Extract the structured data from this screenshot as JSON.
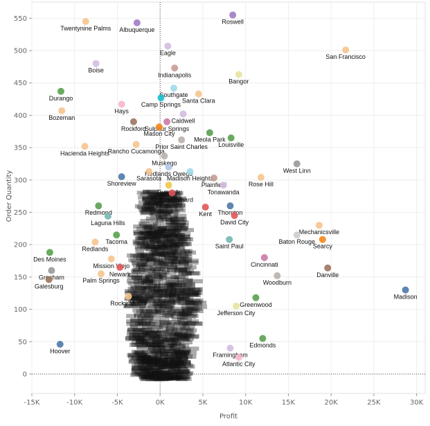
{
  "chart_data": {
    "type": "scatter",
    "xlabel": "Profit",
    "ylabel": "Order Quantity",
    "xlim": [
      -15000,
      31000
    ],
    "ylim": [
      -30,
      575
    ],
    "x_ticks": [
      {
        "value": -15000,
        "label": "-15K"
      },
      {
        "value": -10000,
        "label": "-10K"
      },
      {
        "value": -5000,
        "label": "-5K"
      },
      {
        "value": 0,
        "label": "0K"
      },
      {
        "value": 5000,
        "label": "5K"
      },
      {
        "value": 10000,
        "label": "10K"
      },
      {
        "value": 15000,
        "label": "15K"
      },
      {
        "value": 20000,
        "label": "20K"
      },
      {
        "value": 25000,
        "label": "25K"
      },
      {
        "value": 30000,
        "label": "30K"
      }
    ],
    "y_ticks": [
      0,
      50,
      100,
      150,
      200,
      250,
      300,
      350,
      400,
      450,
      500,
      550
    ],
    "grid": true,
    "reference_lines": {
      "x": 0,
      "y": 0
    },
    "points": [
      {
        "label": "Roswell",
        "x": 8500,
        "y": 555,
        "color": "#a07cc5"
      },
      {
        "label": "Twentynine Palms",
        "x": -8700,
        "y": 545,
        "color": "#f6c48f"
      },
      {
        "label": "Albuquerque",
        "x": -2700,
        "y": 543,
        "color": "#a07cc5"
      },
      {
        "label": "Eagle",
        "x": 900,
        "y": 507,
        "color": "#d3bce0"
      },
      {
        "label": "San Francisco",
        "x": 21700,
        "y": 501,
        "color": "#f6c48f"
      },
      {
        "label": "Boise",
        "x": -7500,
        "y": 480,
        "color": "#d3bce0"
      },
      {
        "label": "Indianapolis",
        "x": 1700,
        "y": 473,
        "color": "#c49c94"
      },
      {
        "label": "Bangor",
        "x": 9200,
        "y": 463,
        "color": "#e6e49e"
      },
      {
        "label": "Southgate",
        "x": 1600,
        "y": 442,
        "color": "#9edae5"
      },
      {
        "label": "Durango",
        "x": -11600,
        "y": 437,
        "color": "#59a14f"
      },
      {
        "label": "Santa Clara",
        "x": 4500,
        "y": 433,
        "color": "#f6c48f"
      },
      {
        "label": "Camp Springs",
        "x": 100,
        "y": 427,
        "color": "#17becf"
      },
      {
        "label": "Hays",
        "x": -4500,
        "y": 417,
        "color": "#f8b6c8"
      },
      {
        "label": "Bozeman",
        "x": -11500,
        "y": 407,
        "color": "#f6c48f"
      },
      {
        "label": "Caldwell",
        "x": 2700,
        "y": 402,
        "color": "#d3bce0"
      },
      {
        "label": "Rockford",
        "x": -3100,
        "y": 390,
        "color": "#9c755f"
      },
      {
        "label": "Sulphur Springs",
        "x": 800,
        "y": 390,
        "color": "#cc79a7"
      },
      {
        "label": "Mason City",
        "x": -100,
        "y": 382,
        "color": "#f58518"
      },
      {
        "label": "Meola Park",
        "x": 5800,
        "y": 373,
        "color": "#59a14f"
      },
      {
        "label": "Louisville",
        "x": 8300,
        "y": 365,
        "color": "#59a14f"
      },
      {
        "label": "Prior Saint Charles",
        "x": 2500,
        "y": 362,
        "color": "#bab0ac"
      },
      {
        "label": "Hacienda Heights",
        "x": -8800,
        "y": 352,
        "color": "#f6c48f"
      },
      {
        "label": "Rancho Cucamonga",
        "x": -2800,
        "y": 355,
        "color": "#f6c48f"
      },
      {
        "label": "Muskego",
        "x": 500,
        "y": 337,
        "color": "#bab0ac"
      },
      {
        "label": "West Linn",
        "x": 16000,
        "y": 325,
        "color": "#999999"
      },
      {
        "label": "Redlands Owego",
        "x": 1000,
        "y": 320,
        "color": "#aec7e8"
      },
      {
        "label": "Sarasota",
        "x": -1300,
        "y": 313,
        "color": "#f6c48f"
      },
      {
        "label": "Madison Heights",
        "x": 3500,
        "y": 313,
        "color": "#9edae5"
      },
      {
        "label": "Shoreview",
        "x": -4500,
        "y": 305,
        "color": "#4e79a7"
      },
      {
        "label": "Rose Hill",
        "x": 11800,
        "y": 304,
        "color": "#f6c48f"
      },
      {
        "label": "Plainfield",
        "x": 6300,
        "y": 303,
        "color": "#c49c94"
      },
      {
        "label": "Tonawanda",
        "x": 7400,
        "y": 292,
        "color": "#d3bce0"
      },
      {
        "label": "Dundalk",
        "x": 1000,
        "y": 292,
        "color": "#edc948"
      },
      {
        "label": "Auburn Oxnard",
        "x": 1400,
        "y": 280,
        "color": "#e15759"
      },
      {
        "label": "Redmond",
        "x": -7200,
        "y": 260,
        "color": "#59a14f"
      },
      {
        "label": "Laguna Hills",
        "x": -6100,
        "y": 244,
        "color": "#76b7b2"
      },
      {
        "label": "Kent",
        "x": 5300,
        "y": 258,
        "color": "#e15759"
      },
      {
        "label": "Thornton",
        "x": 8200,
        "y": 260,
        "color": "#4e79a7"
      },
      {
        "label": "David City",
        "x": 8700,
        "y": 245,
        "color": "#e15759"
      },
      {
        "label": "Mechanicsville",
        "x": 18600,
        "y": 230,
        "color": "#f6c48f"
      },
      {
        "label": "Tacoma",
        "x": -5100,
        "y": 215,
        "color": "#59a14f"
      },
      {
        "label": "Baton Rouge",
        "x": 16000,
        "y": 215,
        "color": "#cccccc"
      },
      {
        "label": "Searcy",
        "x": 19000,
        "y": 208,
        "color": "#f58518"
      },
      {
        "label": "Saint Paul",
        "x": 8100,
        "y": 208,
        "color": "#76b7b2"
      },
      {
        "label": "Redlands",
        "x": -7600,
        "y": 204,
        "color": "#f6c48f"
      },
      {
        "label": "Des Moines",
        "x": -12900,
        "y": 188,
        "color": "#59a14f"
      },
      {
        "label": "Mission Viejo",
        "x": -5700,
        "y": 178,
        "color": "#f6c48f"
      },
      {
        "label": "Newark",
        "x": -4700,
        "y": 165,
        "color": "#e15759"
      },
      {
        "label": "Cincinnati",
        "x": 12200,
        "y": 180,
        "color": "#cc79a7"
      },
      {
        "label": "Gresham",
        "x": -12700,
        "y": 160,
        "color": "#999999"
      },
      {
        "label": "Danville",
        "x": 19600,
        "y": 164,
        "color": "#9c755f"
      },
      {
        "label": "Palm Springs",
        "x": -6900,
        "y": 155,
        "color": "#f6c48f"
      },
      {
        "label": "Woodburn",
        "x": 13700,
        "y": 152,
        "color": "#bab0ac"
      },
      {
        "label": "Galesburg",
        "x": -13000,
        "y": 146,
        "color": "#9c755f"
      },
      {
        "label": "Madison",
        "x": 28700,
        "y": 130,
        "color": "#4e79a7"
      },
      {
        "label": "Rocky Mount",
        "x": -3700,
        "y": 120,
        "color": "#f6c48f"
      },
      {
        "label": "Greenwood",
        "x": 11200,
        "y": 118,
        "color": "#59a14f"
      },
      {
        "label": "Jefferson City",
        "x": 8900,
        "y": 105,
        "color": "#e6e49e"
      },
      {
        "label": "Edmonds",
        "x": 12000,
        "y": 55,
        "color": "#59a14f"
      },
      {
        "label": "Framingham",
        "x": 8200,
        "y": 40,
        "color": "#d3bce0"
      },
      {
        "label": "Atlantic City",
        "x": 9200,
        "y": 26,
        "color": "#f8b6c8"
      },
      {
        "label": "Hoover",
        "x": -11700,
        "y": 46,
        "color": "#4e79a7"
      }
    ]
  }
}
